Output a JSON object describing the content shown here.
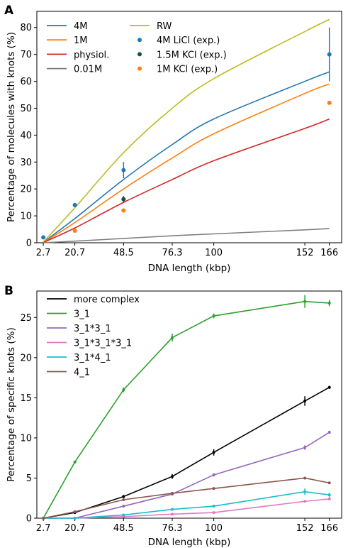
{
  "chart_data": [
    {
      "panel_label": "A",
      "type": "line",
      "xlabel": "DNA length (kbp)",
      "ylabel": "Percentage of molecules with knots (%)",
      "xlim": [
        -1.0,
        173.0
      ],
      "ylim": [
        0,
        86
      ],
      "x_ticks": [
        2.7,
        20.7,
        48.5,
        76.3,
        100,
        152,
        166
      ],
      "x_tick_labels": [
        "2.7",
        "20.7",
        "48.5",
        "76.3",
        "100",
        "152",
        "166"
      ],
      "y_ticks": [
        0,
        10,
        20,
        30,
        40,
        50,
        60,
        70,
        80
      ],
      "grid": false,
      "legend_position": "top-left, two columns",
      "series": [
        {
          "name": "4M",
          "color": "#1f77b4",
          "x": [
            2.7,
            20.7,
            48.5,
            76.3,
            100,
            152,
            166
          ],
          "y": [
            0.2,
            9.0,
            23.5,
            36.5,
            46.0,
            60.0,
            63.5
          ]
        },
        {
          "name": "1M",
          "color": "#ff7f0e",
          "x": [
            2.7,
            20.7,
            48.5,
            76.3,
            100,
            152,
            166
          ],
          "y": [
            0.1,
            7.5,
            20.0,
            31.5,
            40.5,
            55.5,
            59.0
          ]
        },
        {
          "name": "physiol.",
          "color": "#d62728",
          "x": [
            2.7,
            20.7,
            48.5,
            76.3,
            100,
            152,
            166
          ],
          "y": [
            0.1,
            5.5,
            15.0,
            23.5,
            30.5,
            42.5,
            46.0
          ]
        },
        {
          "name": "0.01M",
          "color": "#7f7f7f",
          "x": [
            2.7,
            20.7,
            48.5,
            76.3,
            100,
            152,
            166
          ],
          "y": [
            0.0,
            0.6,
            1.6,
            2.6,
            3.3,
            4.8,
            5.3
          ]
        },
        {
          "name": "RW",
          "color": "#bcbd22",
          "x": [
            2.7,
            20.7,
            48.5,
            76.3,
            100,
            152,
            166
          ],
          "y": [
            0.3,
            13.0,
            33.5,
            50.0,
            61.0,
            78.5,
            83.0
          ]
        }
      ],
      "experimental": [
        {
          "name": "4M LiCl (exp.)",
          "color": "#1f77b4",
          "x": [
            2.7,
            20.7,
            48.5,
            166
          ],
          "y": [
            2.0,
            14.0,
            27.0,
            70.0
          ],
          "err": [
            0,
            0,
            3.0,
            10.0
          ]
        },
        {
          "name": "1.5M KCl (exp.)",
          "color": "#1b4d4a",
          "x": [
            48.5
          ],
          "y": [
            16.2
          ],
          "err": [
            1.2
          ]
        },
        {
          "name": "1M KCl (exp.)",
          "color": "#ff7f0e",
          "x": [
            20.7,
            48.5,
            166
          ],
          "y": [
            4.5,
            12.0,
            52.0
          ],
          "err": [
            0,
            0,
            0
          ]
        }
      ]
    },
    {
      "panel_label": "B",
      "type": "line",
      "xlabel": "DNA length (kbp)",
      "ylabel": "Percentage of specific knots (%)",
      "xlim": [
        -1.0,
        173.0
      ],
      "ylim": [
        0,
        28.3
      ],
      "x_ticks": [
        2.7,
        20.7,
        48.5,
        76.3,
        100,
        152,
        166
      ],
      "x_tick_labels": [
        "2.7",
        "20.7",
        "48.5",
        "76.3",
        "100",
        "152",
        "166"
      ],
      "y_ticks": [
        0,
        5,
        10,
        15,
        20,
        25
      ],
      "grid": false,
      "legend_position": "top-left",
      "series": [
        {
          "name": "more complex",
          "color": "#000000",
          "x": [
            2.7,
            20.7,
            48.5,
            76.3,
            100,
            152,
            166
          ],
          "y": [
            0.0,
            0.7,
            2.7,
            5.2,
            8.2,
            14.6,
            16.3
          ],
          "err": [
            0,
            0,
            0.2,
            0.3,
            0.4,
            0.6,
            0.2
          ]
        },
        {
          "name": "3_1",
          "color": "#2ca02c",
          "x": [
            2.7,
            20.7,
            48.5,
            76.3,
            100,
            152,
            166
          ],
          "y": [
            0.0,
            7.0,
            16.0,
            22.5,
            25.2,
            27.0,
            26.8
          ],
          "err": [
            0,
            0,
            0.3,
            0.5,
            0.3,
            0.8,
            0.4
          ]
        },
        {
          "name": "3_1*3_1",
          "color": "#9467bd",
          "x": [
            2.7,
            20.7,
            48.5,
            76.3,
            100,
            152,
            166
          ],
          "y": [
            0.0,
            0.0,
            1.5,
            3.0,
            5.4,
            8.8,
            10.7
          ],
          "err": [
            0,
            0,
            0,
            0,
            0.2,
            0.3,
            0.2
          ]
        },
        {
          "name": "3_1*3_1*3_1",
          "color": "#e377c2",
          "x": [
            2.7,
            20.7,
            48.5,
            76.3,
            100,
            152,
            166
          ],
          "y": [
            0.0,
            0.0,
            0.2,
            0.5,
            0.7,
            2.1,
            2.4
          ],
          "err": [
            0,
            0,
            0,
            0,
            0,
            0.1,
            0.1
          ]
        },
        {
          "name": "3_1*4_1",
          "color": "#17becf",
          "x": [
            2.7,
            20.7,
            48.5,
            76.3,
            100,
            152,
            166
          ],
          "y": [
            0.0,
            0.0,
            0.4,
            1.1,
            1.5,
            3.3,
            2.9
          ],
          "err": [
            0,
            0,
            0,
            0,
            0,
            0.4,
            0.3
          ]
        },
        {
          "name": "4_1",
          "color": "#8c564b",
          "x": [
            2.7,
            20.7,
            48.5,
            76.3,
            100,
            152,
            166
          ],
          "y": [
            0.0,
            0.8,
            2.3,
            3.1,
            3.7,
            5.0,
            4.4
          ],
          "err": [
            0,
            0,
            0,
            0,
            0,
            0.1,
            0.1
          ]
        }
      ]
    }
  ]
}
